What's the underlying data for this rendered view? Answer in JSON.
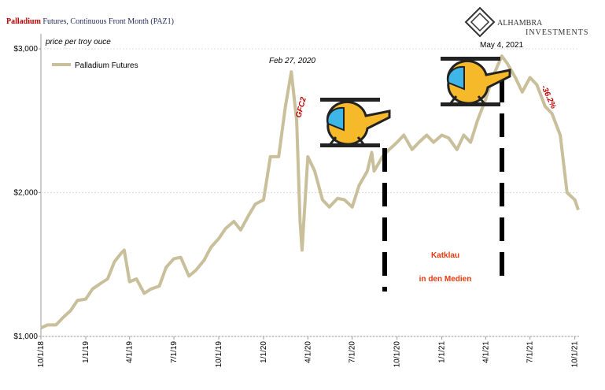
{
  "chart_data": {
    "type": "line",
    "title": [
      "Palladium",
      "Futures, Continuous Front Month (PAZ1)"
    ],
    "brand": [
      "ALHAMBRA",
      "INVESTMENTS"
    ],
    "y_label": "price per troy ouce",
    "annotations": [
      "Feb 27, 2020",
      "May 4, 2021",
      "GFC2",
      "-36.2%",
      "Katklau",
      "in den Medien"
    ],
    "legend": "upper left",
    "grid": true,
    "x": [
      "2018-10-01",
      "2018-10-15",
      "2018-11-01",
      "2018-11-15",
      "2018-12-01",
      "2018-12-15",
      "2019-01-01",
      "2019-01-15",
      "2019-02-01",
      "2019-02-15",
      "2019-03-01",
      "2019-03-15",
      "2019-03-21",
      "2019-04-01",
      "2019-04-15",
      "2019-05-01",
      "2019-05-15",
      "2019-06-01",
      "2019-06-15",
      "2019-07-01",
      "2019-07-15",
      "2019-08-01",
      "2019-08-15",
      "2019-09-01",
      "2019-09-15",
      "2019-10-01",
      "2019-10-15",
      "2019-11-01",
      "2019-11-15",
      "2019-12-01",
      "2019-12-15",
      "2020-01-01",
      "2020-01-15",
      "2020-02-01",
      "2020-02-15",
      "2020-02-27",
      "2020-03-09",
      "2020-03-16",
      "2020-03-20",
      "2020-04-01",
      "2020-04-15",
      "2020-05-01",
      "2020-05-15",
      "2020-06-01",
      "2020-06-15",
      "2020-07-01",
      "2020-07-15",
      "2020-08-01",
      "2020-08-10",
      "2020-08-15",
      "2020-09-01",
      "2020-09-15",
      "2020-10-01",
      "2020-10-15",
      "2020-11-01",
      "2020-11-15",
      "2020-12-01",
      "2020-12-15",
      "2021-01-01",
      "2021-01-15",
      "2021-02-01",
      "2021-02-15",
      "2021-03-01",
      "2021-03-15",
      "2021-04-01",
      "2021-04-15",
      "2021-05-04",
      "2021-05-15",
      "2021-06-01",
      "2021-06-15",
      "2021-07-01",
      "2021-07-15",
      "2021-08-01",
      "2021-08-15",
      "2021-09-01",
      "2021-09-15",
      "2021-10-01",
      "2021-10-08"
    ],
    "series": [
      {
        "name": "Palladium Futures",
        "color": "#c9bf9b",
        "values": [
          1060,
          1080,
          1080,
          1130,
          1180,
          1250,
          1260,
          1330,
          1370,
          1400,
          1520,
          1580,
          1600,
          1380,
          1400,
          1300,
          1330,
          1350,
          1480,
          1540,
          1550,
          1420,
          1460,
          1530,
          1620,
          1680,
          1750,
          1800,
          1740,
          1840,
          1920,
          1950,
          2250,
          2250,
          2600,
          2840,
          2500,
          1800,
          1600,
          2250,
          2150,
          1950,
          1900,
          1960,
          1950,
          1900,
          2050,
          2150,
          2280,
          2150,
          2250,
          2300,
          2350,
          2400,
          2300,
          2350,
          2400,
          2350,
          2400,
          2380,
          2300,
          2400,
          2350,
          2500,
          2650,
          2800,
          2950,
          2900,
          2800,
          2700,
          2800,
          2750,
          2600,
          2550,
          2400,
          2000,
          1950,
          1880
        ]
      }
    ],
    "xlim": [
      "2018-10-01",
      "2021-10-08"
    ],
    "xticks": [
      {
        "value": "2018-10-01",
        "label": "10/1/18"
      },
      {
        "value": "2019-01-01",
        "label": "1/1/19"
      },
      {
        "value": "2019-04-01",
        "label": "4/1/19"
      },
      {
        "value": "2019-07-01",
        "label": "7/1/19"
      },
      {
        "value": "2019-10-01",
        "label": "10/1/19"
      },
      {
        "value": "2020-01-01",
        "label": "1/1/20"
      },
      {
        "value": "2020-04-01",
        "label": "4/1/20"
      },
      {
        "value": "2020-07-01",
        "label": "7/1/20"
      },
      {
        "value": "2020-10-01",
        "label": "10/1/20"
      },
      {
        "value": "2021-01-01",
        "label": "1/1/21"
      },
      {
        "value": "2021-04-01",
        "label": "4/1/21"
      },
      {
        "value": "2021-07-01",
        "label": "7/1/21"
      },
      {
        "value": "2021-10-01",
        "label": "10/1/21"
      }
    ],
    "ylim": [
      1000,
      3100
    ],
    "yticks": [
      {
        "value": 1000,
        "label": "$1,000"
      },
      {
        "value": 2000,
        "label": "$2,000"
      },
      {
        "value": 3000,
        "label": "$3,000"
      }
    ]
  }
}
